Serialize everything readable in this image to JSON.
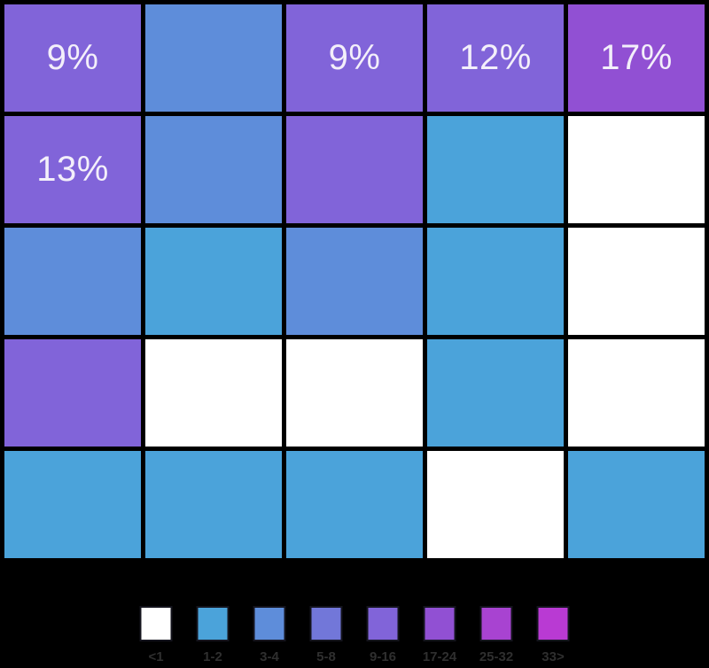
{
  "chart_data": {
    "type": "heatmap",
    "rows": 5,
    "cols": 5,
    "cells": [
      [
        {
          "bucket": "9-16",
          "label": "9%"
        },
        {
          "bucket": "3-4",
          "label": ""
        },
        {
          "bucket": "9-16",
          "label": "9%"
        },
        {
          "bucket": "9-16",
          "label": "12%"
        },
        {
          "bucket": "17-24",
          "label": "17%"
        }
      ],
      [
        {
          "bucket": "9-16",
          "label": "13%"
        },
        {
          "bucket": "3-4",
          "label": ""
        },
        {
          "bucket": "9-16",
          "label": ""
        },
        {
          "bucket": "1-2",
          "label": ""
        },
        {
          "bucket": "<1",
          "label": ""
        }
      ],
      [
        {
          "bucket": "3-4",
          "label": ""
        },
        {
          "bucket": "1-2",
          "label": ""
        },
        {
          "bucket": "3-4",
          "label": ""
        },
        {
          "bucket": "1-2",
          "label": ""
        },
        {
          "bucket": "<1",
          "label": ""
        }
      ],
      [
        {
          "bucket": "9-16",
          "label": ""
        },
        {
          "bucket": "<1",
          "label": ""
        },
        {
          "bucket": "<1",
          "label": ""
        },
        {
          "bucket": "1-2",
          "label": ""
        },
        {
          "bucket": "<1",
          "label": ""
        }
      ],
      [
        {
          "bucket": "1-2",
          "label": ""
        },
        {
          "bucket": "1-2",
          "label": ""
        },
        {
          "bucket": "1-2",
          "label": ""
        },
        {
          "bucket": "<1",
          "label": ""
        },
        {
          "bucket": "1-2",
          "label": ""
        }
      ]
    ],
    "legend": {
      "position": "bottom-center",
      "bins": [
        {
          "label": "<1",
          "color": "#ffffff"
        },
        {
          "label": "1-2",
          "color": "#4ba3da"
        },
        {
          "label": "3-4",
          "color": "#5e8dda"
        },
        {
          "label": "5-8",
          "color": "#7277d9"
        },
        {
          "label": "9-16",
          "color": "#8164d9"
        },
        {
          "label": "17-24",
          "color": "#9150d3"
        },
        {
          "label": "25-32",
          "color": "#a843d1"
        },
        {
          "label": "33>",
          "color": "#b93ad3"
        }
      ]
    },
    "colors": {
      "background": "#000000",
      "gridline": "#000000",
      "cell_label_text": "#f3effa",
      "legend_label_text": "#2f2f2f"
    }
  }
}
